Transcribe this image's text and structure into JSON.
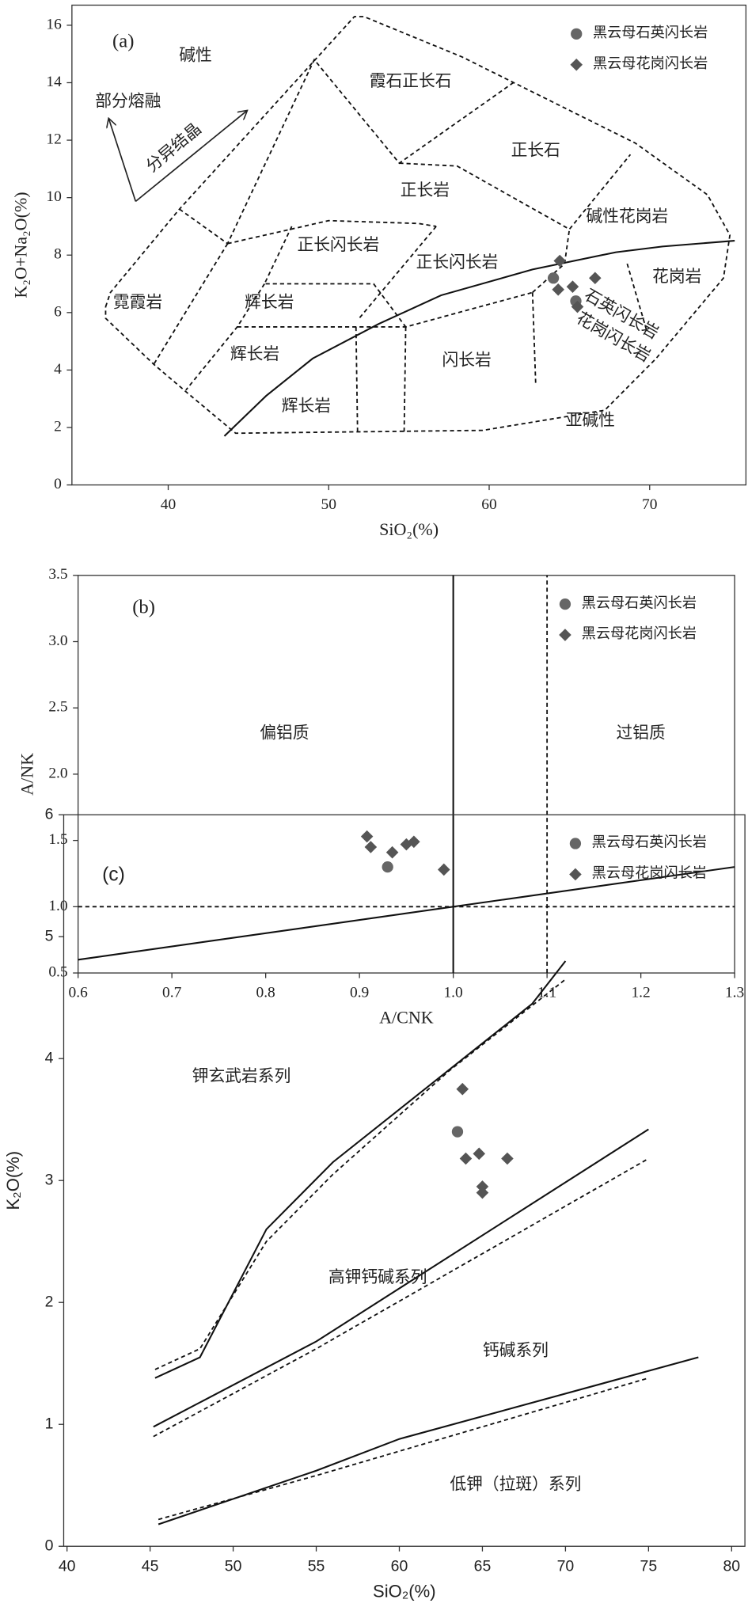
{
  "chart_data": [
    {
      "type": "scatter",
      "xlabel": "SiO₂(%)",
      "ylabel": "K₂O+Na₂O(%)",
      "xlim": [
        34,
        76
      ],
      "ylim": [
        0,
        16.7
      ],
      "xticks": [
        40,
        50,
        60,
        70
      ],
      "yticks": [
        0,
        2,
        4,
        6,
        8,
        10,
        12,
        14,
        16
      ],
      "legend": "upper right",
      "series": [
        {
          "name": "黑云母石英闪长岩",
          "color": "#666666",
          "marker": "circle",
          "x": [
            64.0,
            65.4
          ],
          "values": [
            7.2,
            6.4
          ]
        },
        {
          "name": "黑云母花岗闪长岩",
          "color": "#555555",
          "marker": "diamond",
          "x": [
            64.4,
            64.3,
            65.2,
            65.5,
            66.6
          ],
          "values": [
            7.8,
            6.8,
            6.9,
            6.2,
            7.2
          ]
        }
      ],
      "lines": [
        {
          "style": "dashed",
          "x": [
            36.1,
            36.4,
            40.7,
            51.6,
            52.2,
            58.3,
            69.1,
            73.6,
            75.0,
            74.6,
            70.4,
            67.2,
            59.6,
            44.2,
            41.2,
            39.1,
            36.1,
            36.1
          ],
          "y": [
            6.2,
            6.7,
            9.6,
            16.3,
            16.3,
            14.9,
            11.9,
            10.1,
            8.7,
            7.2,
            4.4,
            2.6,
            1.9,
            1.8,
            3.2,
            4.2,
            5.8,
            6.2
          ]
        },
        {
          "style": "dashed",
          "x": [
            40.7,
            43.7,
            49.1,
            54.4,
            61.5
          ],
          "y": [
            9.6,
            8.4,
            14.8,
            11.2,
            14.0
          ]
        },
        {
          "style": "dashed",
          "x": [
            54.4,
            58.0,
            65.0,
            68.8
          ],
          "y": [
            11.2,
            11.1,
            8.9,
            11.5
          ]
        },
        {
          "style": "dashed",
          "x": [
            43.7,
            39.1
          ],
          "y": [
            8.4,
            4.2
          ]
        },
        {
          "style": "dashed",
          "x": [
            43.7,
            50.0,
            55.6,
            56.7
          ],
          "y": [
            8.4,
            9.2,
            9.1,
            9.0
          ]
        },
        {
          "style": "dashed",
          "x": [
            47.7,
            46.0,
            52.8,
            54.8
          ],
          "y": [
            9.0,
            7.0,
            7.0,
            5.5
          ]
        },
        {
          "style": "dashed",
          "x": [
            56.7,
            51.9
          ],
          "y": [
            9.0,
            5.8
          ]
        },
        {
          "style": "dashed",
          "x": [
            46.0,
            44.3,
            41.1
          ],
          "y": [
            7.0,
            5.5,
            3.3
          ]
        },
        {
          "style": "dashed",
          "x": [
            44.3,
            54.8,
            62.7
          ],
          "y": [
            5.5,
            5.5,
            6.7
          ]
        },
        {
          "style": "dashed",
          "x": [
            51.7,
            51.8
          ],
          "y": [
            5.5,
            1.8
          ]
        },
        {
          "style": "dashed",
          "x": [
            54.8,
            54.7
          ],
          "y": [
            5.5,
            1.8
          ]
        },
        {
          "style": "dashed",
          "x": [
            62.7,
            62.9
          ],
          "y": [
            6.7,
            3.5
          ]
        },
        {
          "style": "dashed",
          "x": [
            62.7,
            64.7,
            65.0
          ],
          "y": [
            6.7,
            7.7,
            8.9
          ]
        },
        {
          "style": "dashed",
          "x": [
            68.6,
            69.8
          ],
          "y": [
            7.7,
            5.4
          ]
        },
        {
          "style": "solid",
          "x": [
            43.5,
            46.1,
            49.0,
            53.1,
            57.0,
            62.7,
            67.9,
            70.8,
            75.3
          ],
          "y": [
            1.7,
            3.1,
            4.4,
            5.6,
            6.6,
            7.5,
            8.1,
            8.3,
            8.5
          ]
        }
      ],
      "annotations": [
        {
          "text": "(a)",
          "x": 37.2,
          "y": 15.4
        },
        {
          "text": "碱性",
          "x": 41.7,
          "y": 14.9
        },
        {
          "text": "霞石正长石",
          "x": 55.1,
          "y": 14.0
        },
        {
          "text": "部分熔融",
          "x": 37.5,
          "y": 13.3
        },
        {
          "text": "分异结晶",
          "x": 40.4,
          "y": 11.7
        },
        {
          "text": "正长石",
          "x": 62.9,
          "y": 11.6
        },
        {
          "text": "正长岩",
          "x": 56.0,
          "y": 10.2
        },
        {
          "text": "碱性花岗岩",
          "x": 68.6,
          "y": 9.3
        },
        {
          "text": "正长闪长岩",
          "x": 50.6,
          "y": 8.3
        },
        {
          "text": "正长闪长岩",
          "x": 58.0,
          "y": 7.7
        },
        {
          "text": "霓霞岩",
          "x": 38.1,
          "y": 6.3
        },
        {
          "text": "辉长岩",
          "x": 46.3,
          "y": 6.3
        },
        {
          "text": "花岗岩",
          "x": 71.7,
          "y": 7.2
        },
        {
          "text": "石英闪长岩",
          "x": 68.2,
          "y": 5.9
        },
        {
          "text": "花岗闪长岩",
          "x": 67.7,
          "y": 5.1
        },
        {
          "text": "辉长岩",
          "x": 45.4,
          "y": 4.5
        },
        {
          "text": "闪长岩",
          "x": 58.6,
          "y": 4.3
        },
        {
          "text": "辉长岩",
          "x": 48.6,
          "y": 2.7
        },
        {
          "text": "亚碱性",
          "x": 66.3,
          "y": 2.2
        }
      ]
    },
    {
      "type": "scatter",
      "xlabel": "A/CNK",
      "ylabel": "A/NK",
      "xlim": [
        0.6,
        1.3
      ],
      "ylim": [
        0.5,
        3.5
      ],
      "xticks": [
        0.6,
        0.7,
        0.8,
        0.9,
        {
          "value": 1,
          "label": "1.0"
        },
        1.1,
        1.2,
        1.3
      ],
      "yticks": [
        0.5,
        {
          "value": 1,
          "label": "1.0"
        },
        1.5,
        {
          "value": 2,
          "label": "2.0"
        },
        2.5,
        {
          "value": 3,
          "label": "3.0"
        },
        3.5
      ],
      "legend": "upper right",
      "series": [
        {
          "name": "黑云母石英闪长岩",
          "color": "#666666",
          "marker": "circle",
          "x": [
            0.93
          ],
          "values": [
            1.3
          ]
        },
        {
          "name": "黑云母花岗闪长岩",
          "color": "#555555",
          "marker": "diamond",
          "x": [
            0.908,
            0.912,
            0.935,
            0.95,
            0.958,
            0.99
          ],
          "values": [
            1.53,
            1.45,
            1.41,
            1.47,
            1.49,
            1.28
          ]
        }
      ],
      "lines": [
        {
          "style": "solid",
          "x": [
            1,
            1
          ],
          "y": [
            0.5,
            3.5
          ]
        },
        {
          "style": "dashed",
          "x": [
            1.1,
            1.1
          ],
          "y": [
            0.5,
            3.5
          ]
        },
        {
          "style": "dashed",
          "x": [
            0.6,
            1.3
          ],
          "y": [
            1,
            1
          ]
        },
        {
          "style": "solid",
          "x": [
            0.6,
            1.3
          ],
          "y": [
            0.6,
            1.3
          ]
        }
      ],
      "annotations": [
        {
          "text": "(b)",
          "x": 0.67,
          "y": 3.25
        },
        {
          "text": "偏铝质",
          "x": 0.82,
          "y": 2.3
        },
        {
          "text": "过铝质",
          "x": 1.2,
          "y": 2.3
        }
      ]
    },
    {
      "type": "scatter",
      "xlabel": "SiO₂(%)",
      "ylabel": "K₂O(%)",
      "xlim": [
        39.8,
        80.8
      ],
      "ylim": [
        0,
        6
      ],
      "xticks": [
        40,
        45,
        50,
        55,
        60,
        65,
        70,
        75,
        80
      ],
      "yticks": [
        0,
        1,
        2,
        3,
        4,
        5,
        6
      ],
      "legend": "upper right",
      "series": [
        {
          "name": "黑云母石英闪长岩",
          "color": "#666666",
          "marker": "circle",
          "x": [
            63.5
          ],
          "values": [
            3.4
          ]
        },
        {
          "name": "黑云母花岗闪长岩",
          "color": "#555555",
          "marker": "diamond",
          "x": [
            63.8,
            64.0,
            64.8,
            65.0,
            65.0,
            66.5
          ],
          "values": [
            3.75,
            3.18,
            3.22,
            2.95,
            2.9,
            3.18
          ]
        }
      ],
      "lines": [
        {
          "style": "solid",
          "x": [
            45.3,
            48,
            52,
            56,
            68,
            70
          ],
          "y": [
            1.38,
            1.55,
            2.6,
            3.15,
            4.45,
            4.8
          ]
        },
        {
          "style": "dashed",
          "x": [
            45.3,
            48,
            52,
            56,
            63,
            70
          ],
          "y": [
            1.45,
            1.62,
            2.5,
            3.05,
            3.9,
            4.65
          ]
        },
        {
          "style": "solid",
          "x": [
            45.2,
            55,
            75
          ],
          "y": [
            0.98,
            1.68,
            3.42
          ]
        },
        {
          "style": "dashed",
          "x": [
            45.2,
            55,
            75
          ],
          "y": [
            0.9,
            1.62,
            3.18
          ]
        },
        {
          "style": "solid",
          "x": [
            45.5,
            55,
            60,
            78
          ],
          "y": [
            0.18,
            0.62,
            0.88,
            1.55
          ]
        },
        {
          "style": "dashed",
          "x": [
            45.5,
            55,
            75
          ],
          "y": [
            0.22,
            0.58,
            1.38
          ]
        }
      ],
      "annotations": [
        {
          "text": "(c)",
          "x": 42.8,
          "y": 5.5
        },
        {
          "text": "钾玄武岩系列",
          "x": 50.5,
          "y": 3.85
        },
        {
          "text": "高钾钙碱系列",
          "x": 58.7,
          "y": 2.2
        },
        {
          "text": "钙碱系列",
          "x": 67,
          "y": 1.6
        },
        {
          "text": "低钾（拉斑）系列",
          "x": 67,
          "y": 0.5
        }
      ]
    }
  ]
}
